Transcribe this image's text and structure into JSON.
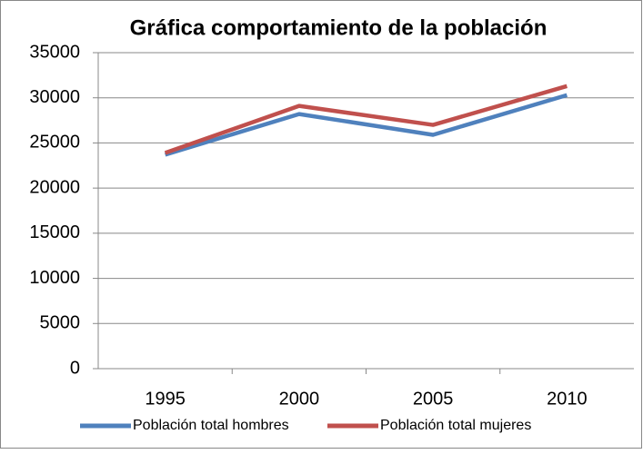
{
  "chart_data": {
    "type": "line",
    "title": "Gráfica comportamiento de la población",
    "categories": [
      "1995",
      "2000",
      "2005",
      "2010"
    ],
    "series": [
      {
        "name": "Población total hombres",
        "color": "#4f81bd",
        "values": [
          23700,
          28200,
          25900,
          30300
        ]
      },
      {
        "name": "Población total mujeres",
        "color": "#c0504d",
        "values": [
          23900,
          29100,
          27000,
          31300
        ]
      }
    ],
    "ylim": [
      0,
      35000
    ],
    "yticks": [
      0,
      5000,
      10000,
      15000,
      20000,
      25000,
      30000,
      35000
    ],
    "grid": true,
    "legend": "bottom"
  }
}
